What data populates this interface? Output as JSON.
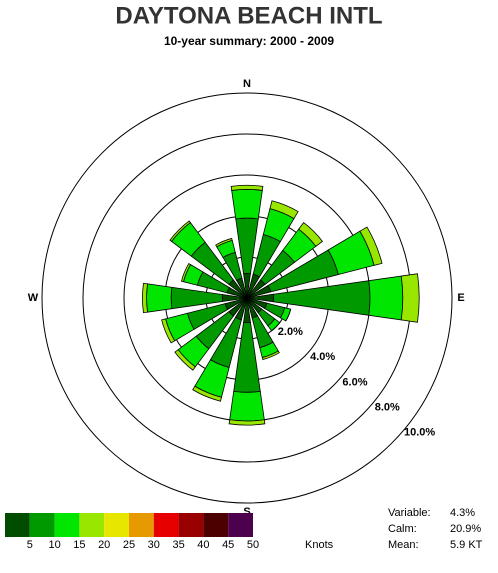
{
  "chart_data": {
    "type": "windrose",
    "title": "DAYTONA BEACH INTL",
    "subtitle": "10-year summary: 2000 - 2009",
    "categories": [
      "N",
      null,
      null,
      null,
      "E",
      null,
      null,
      null,
      "S",
      null,
      null,
      null,
      "W",
      null,
      null,
      null
    ],
    "series": [
      {
        "color": "#004d00",
        "values": [
          1.2,
          1.2,
          1.1,
          1.2,
          1.3,
          1.0,
          0.9,
          1.0,
          1.2,
          1.1,
          1.1,
          1.1,
          1.2,
          1.0,
          1.1,
          1.0
        ]
      },
      {
        "color": "#009900",
        "values": [
          2.7,
          2.0,
          1.8,
          3.4,
          4.7,
          0.9,
          0.8,
          1.5,
          3.4,
          2.4,
          2.0,
          1.9,
          2.5,
          1.5,
          2.3,
          1.3
        ]
      },
      {
        "color": "#00e600",
        "values": [
          1.4,
          1.3,
          1.3,
          1.8,
          1.6,
          0.3,
          0.3,
          0.5,
          1.4,
          1.5,
          1.1,
          1.1,
          1.2,
          0.7,
          1.2,
          0.6
        ]
      },
      {
        "color": "#99e600",
        "values": [
          0.2,
          0.4,
          0.4,
          0.4,
          0.8,
          0,
          0,
          0.1,
          0.2,
          0.2,
          0.2,
          0.2,
          0.2,
          0.1,
          0.1,
          0.1
        ]
      }
    ],
    "rlim": [
      0,
      10
    ],
    "rticks": [
      {
        "value": 2,
        "label": "2.0%"
      },
      {
        "value": 4,
        "label": "4.0%"
      },
      {
        "value": 6,
        "label": "6.0%"
      },
      {
        "value": 8,
        "label": "8.0%"
      },
      {
        "value": 10,
        "label": "10.0%"
      }
    ],
    "legend": {
      "colors": [
        "#004d00",
        "#009900",
        "#00e600",
        "#99e600",
        "#e6e600",
        "#e69900",
        "#e60000",
        "#990000",
        "#4d0000",
        "#4d004d"
      ],
      "labels": [
        5,
        10,
        15,
        20,
        25,
        30,
        35,
        40,
        45,
        50
      ],
      "unit": "Knots"
    },
    "stats": [
      {
        "label": "Variable:",
        "value": "4.3%"
      },
      {
        "label": "Calm:",
        "value": "20.9%"
      },
      {
        "label": "Mean:",
        "value": "5.9 KT"
      }
    ]
  }
}
